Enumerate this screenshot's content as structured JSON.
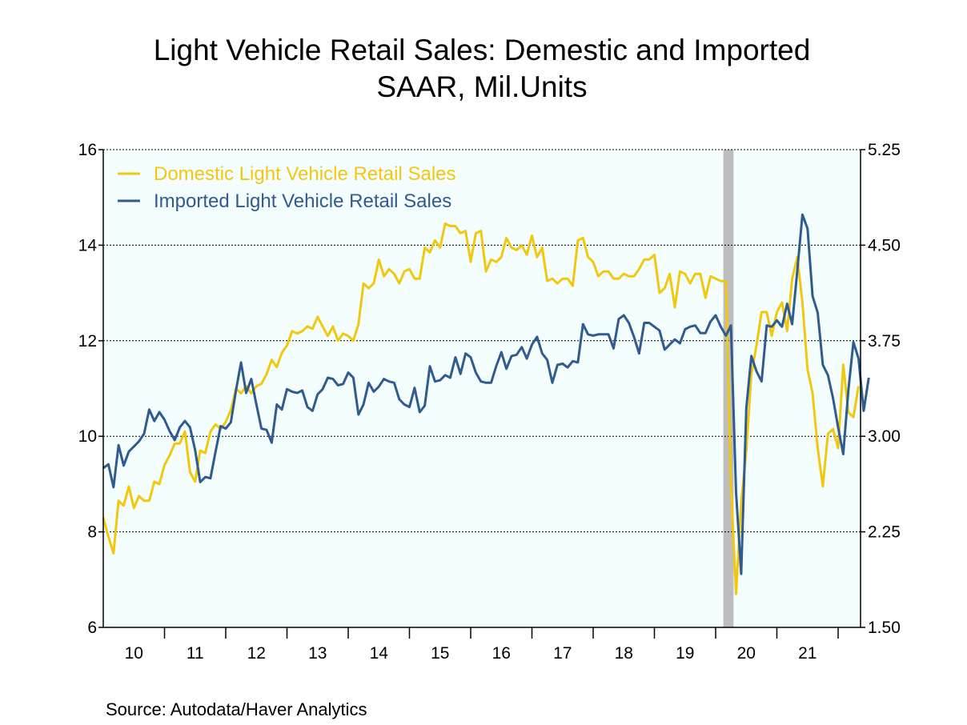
{
  "chart_data": {
    "type": "line",
    "title": "Light Vehicle Retail Sales: Demestic and Imported",
    "subtitle": "SAAR, Mil.Units",
    "source": "Source:  Autodata/Haver Analytics",
    "x_start": "2010-01",
    "x_end": "2022-02",
    "x_tick_labels": [
      "10",
      "11",
      "12",
      "13",
      "14",
      "15",
      "16",
      "17",
      "18",
      "19",
      "20",
      "21"
    ],
    "left_axis": {
      "min": 6,
      "max": 16,
      "ticks": [
        "6",
        "8",
        "10",
        "12",
        "14",
        "16"
      ]
    },
    "right_axis": {
      "min": 1.5,
      "max": 5.25,
      "ticks": [
        "1.50",
        "2.25",
        "3.00",
        "3.75",
        "4.50",
        "5.25"
      ]
    },
    "grid": true,
    "legend_position": "top-left",
    "recession_shading": {
      "start": "2020-03",
      "end": "2020-04",
      "color": "#bdbdbd"
    },
    "series": [
      {
        "name": "Domestic Light Vehicle Retail Sales",
        "axis": "left",
        "color": "#f2c80f",
        "values": [
          8.3,
          7.9,
          7.55,
          8.65,
          8.55,
          8.95,
          8.5,
          8.75,
          8.65,
          8.65,
          9.05,
          9.0,
          9.4,
          9.6,
          9.85,
          9.85,
          10.1,
          9.25,
          9.05,
          9.7,
          9.65,
          10.1,
          10.25,
          10.15,
          10.3,
          10.55,
          11.0,
          10.9,
          11.05,
          10.9,
          11.05,
          11.1,
          11.3,
          11.6,
          11.45,
          11.75,
          11.9,
          12.2,
          12.15,
          12.2,
          12.3,
          12.25,
          12.5,
          12.3,
          12.1,
          12.3,
          12.0,
          12.15,
          12.1,
          12.0,
          12.35,
          13.2,
          13.1,
          13.2,
          13.7,
          13.35,
          13.5,
          13.4,
          13.2,
          13.45,
          13.5,
          13.3,
          13.3,
          13.95,
          13.85,
          14.1,
          13.95,
          14.45,
          14.4,
          14.4,
          14.25,
          14.3,
          13.65,
          14.25,
          14.3,
          13.45,
          13.7,
          13.65,
          13.75,
          14.15,
          13.95,
          13.9,
          14.0,
          13.8,
          14.2,
          13.75,
          13.95,
          13.25,
          13.3,
          13.2,
          13.3,
          13.3,
          13.15,
          14.1,
          14.15,
          13.75,
          13.65,
          13.35,
          13.45,
          13.45,
          13.3,
          13.3,
          13.4,
          13.35,
          13.35,
          13.5,
          13.7,
          13.7,
          13.8,
          13.0,
          13.1,
          13.4,
          12.7,
          13.45,
          13.4,
          13.2,
          13.4,
          13.4,
          12.9,
          13.35,
          13.3,
          13.25,
          13.25,
          9.0,
          6.7,
          8.6,
          9.7,
          11.3,
          11.9,
          12.6,
          12.6,
          12.1,
          12.6,
          12.8,
          12.2,
          13.3,
          13.75,
          12.8,
          11.4,
          10.9,
          9.75,
          8.95,
          10.05,
          10.15,
          9.75,
          11.5,
          10.5,
          10.4,
          11.05
        ]
      },
      {
        "name": "Imported Light Vehicle Retail Sales",
        "axis": "right",
        "color": "#2f5b8f",
        "values": [
          2.75,
          2.78,
          2.6,
          2.93,
          2.77,
          2.88,
          2.92,
          2.96,
          3.02,
          3.21,
          3.12,
          3.19,
          3.13,
          3.04,
          2.97,
          3.07,
          3.12,
          3.07,
          2.89,
          2.64,
          2.68,
          2.67,
          2.88,
          3.08,
          3.06,
          3.11,
          3.36,
          3.58,
          3.34,
          3.45,
          3.25,
          3.06,
          3.05,
          2.95,
          3.25,
          3.21,
          3.37,
          3.35,
          3.34,
          3.36,
          3.23,
          3.2,
          3.33,
          3.37,
          3.46,
          3.45,
          3.4,
          3.41,
          3.5,
          3.46,
          3.17,
          3.25,
          3.42,
          3.35,
          3.39,
          3.45,
          3.43,
          3.42,
          3.29,
          3.25,
          3.23,
          3.38,
          3.19,
          3.24,
          3.55,
          3.43,
          3.44,
          3.48,
          3.46,
          3.62,
          3.49,
          3.65,
          3.62,
          3.5,
          3.43,
          3.42,
          3.42,
          3.55,
          3.66,
          3.53,
          3.63,
          3.64,
          3.7,
          3.61,
          3.72,
          3.78,
          3.65,
          3.6,
          3.42,
          3.56,
          3.57,
          3.54,
          3.59,
          3.58,
          3.88,
          3.8,
          3.79,
          3.8,
          3.8,
          3.8,
          3.69,
          3.92,
          3.95,
          3.89,
          3.78,
          3.65,
          3.89,
          3.89,
          3.86,
          3.83,
          3.68,
          3.72,
          3.76,
          3.73,
          3.84,
          3.86,
          3.87,
          3.81,
          3.81,
          3.9,
          3.95,
          3.86,
          3.79,
          3.87,
          2.56,
          1.92,
          3.22,
          3.63,
          3.51,
          3.43,
          3.87,
          3.86,
          3.91,
          3.86,
          4.04,
          3.88,
          4.3,
          4.74,
          4.63,
          4.1,
          3.97,
          3.56,
          3.48,
          3.3,
          3.07,
          2.86,
          3.36,
          3.74,
          3.61,
          3.2,
          3.46
        ]
      }
    ]
  }
}
